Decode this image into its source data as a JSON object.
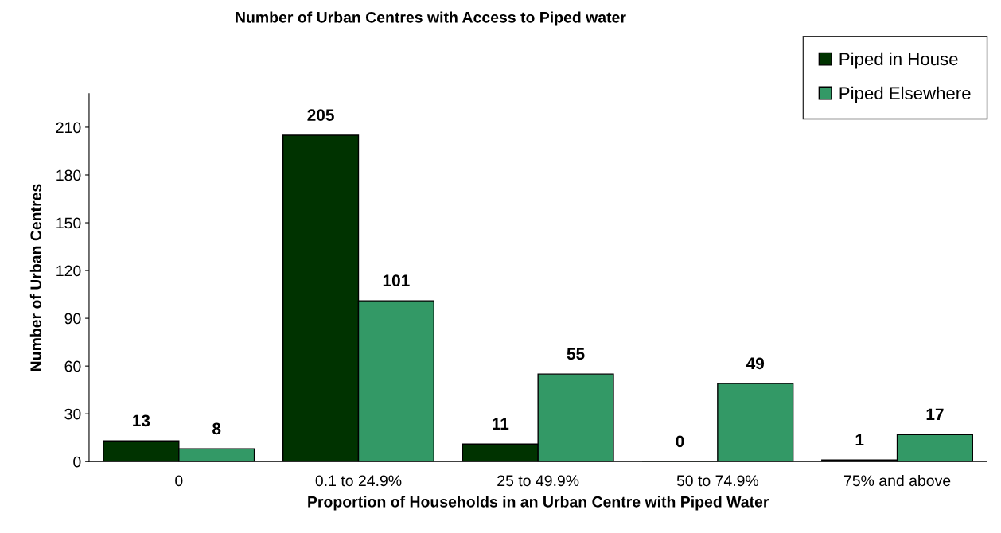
{
  "chart_data": {
    "type": "bar",
    "title": "Number of Urban Centres with Access to Piped water",
    "xlabel": "Proportion of Households in an Urban Centre with Piped Water",
    "ylabel": "Number of Urban Centres",
    "categories": [
      "0",
      "0.1 to 24.9%",
      "25 to 49.9%",
      "50 to 74.9%",
      "75% and above"
    ],
    "series": [
      {
        "name": "Piped in House",
        "color": "#003300",
        "values": [
          13,
          205,
          11,
          0,
          1
        ]
      },
      {
        "name": "Piped Elsewhere",
        "color": "#339966",
        "values": [
          8,
          101,
          55,
          49,
          17
        ]
      }
    ],
    "ylim": [
      0,
      231
    ],
    "yticks": [
      0,
      30,
      60,
      90,
      120,
      150,
      180,
      210
    ],
    "data_labels": true,
    "legend": "top right",
    "grid": false
  }
}
